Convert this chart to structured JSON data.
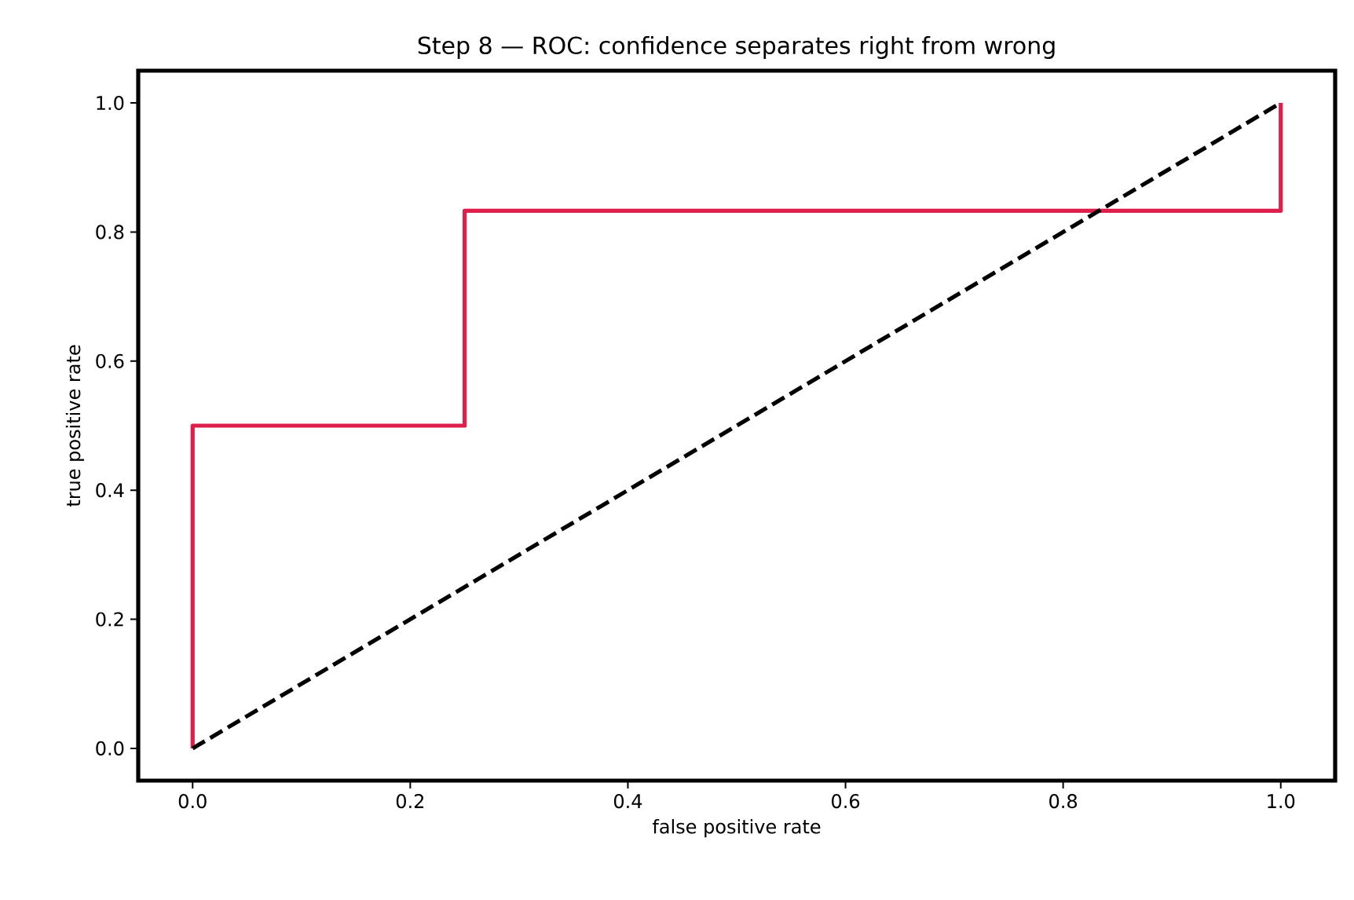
{
  "chart_data": {
    "type": "line",
    "title": "Step 8 — ROC: confidence separates right from wrong",
    "xlabel": "false positive rate",
    "ylabel": "true positive rate",
    "xlim": [
      -0.05,
      1.05
    ],
    "ylim": [
      -0.05,
      1.05
    ],
    "xticks": [
      {
        "value": 0,
        "label": "0.0"
      },
      {
        "value": 0.2,
        "label": "0.2"
      },
      {
        "value": 0.4,
        "label": "0.4"
      },
      {
        "value": 0.6,
        "label": "0.6"
      },
      {
        "value": 0.8,
        "label": "0.8"
      },
      {
        "value": 1,
        "label": "1.0"
      }
    ],
    "yticks": [
      {
        "value": 0,
        "label": "0.0"
      },
      {
        "value": 0.2,
        "label": "0.2"
      },
      {
        "value": 0.4,
        "label": "0.4"
      },
      {
        "value": 0.6,
        "label": "0.6"
      },
      {
        "value": 0.8,
        "label": "0.8"
      },
      {
        "value": 1,
        "label": "1.0"
      }
    ],
    "series": [
      {
        "color": "#dc1f4b",
        "line_style": "solid",
        "x": [
          0,
          0,
          0.25,
          0.25,
          1,
          1
        ],
        "values": [
          0,
          0.5,
          0.5,
          0.833,
          0.833,
          1
        ]
      },
      {
        "color": "#000000",
        "line_style": "dashed",
        "x": [
          0,
          1
        ],
        "values": [
          0,
          1
        ]
      }
    ]
  }
}
